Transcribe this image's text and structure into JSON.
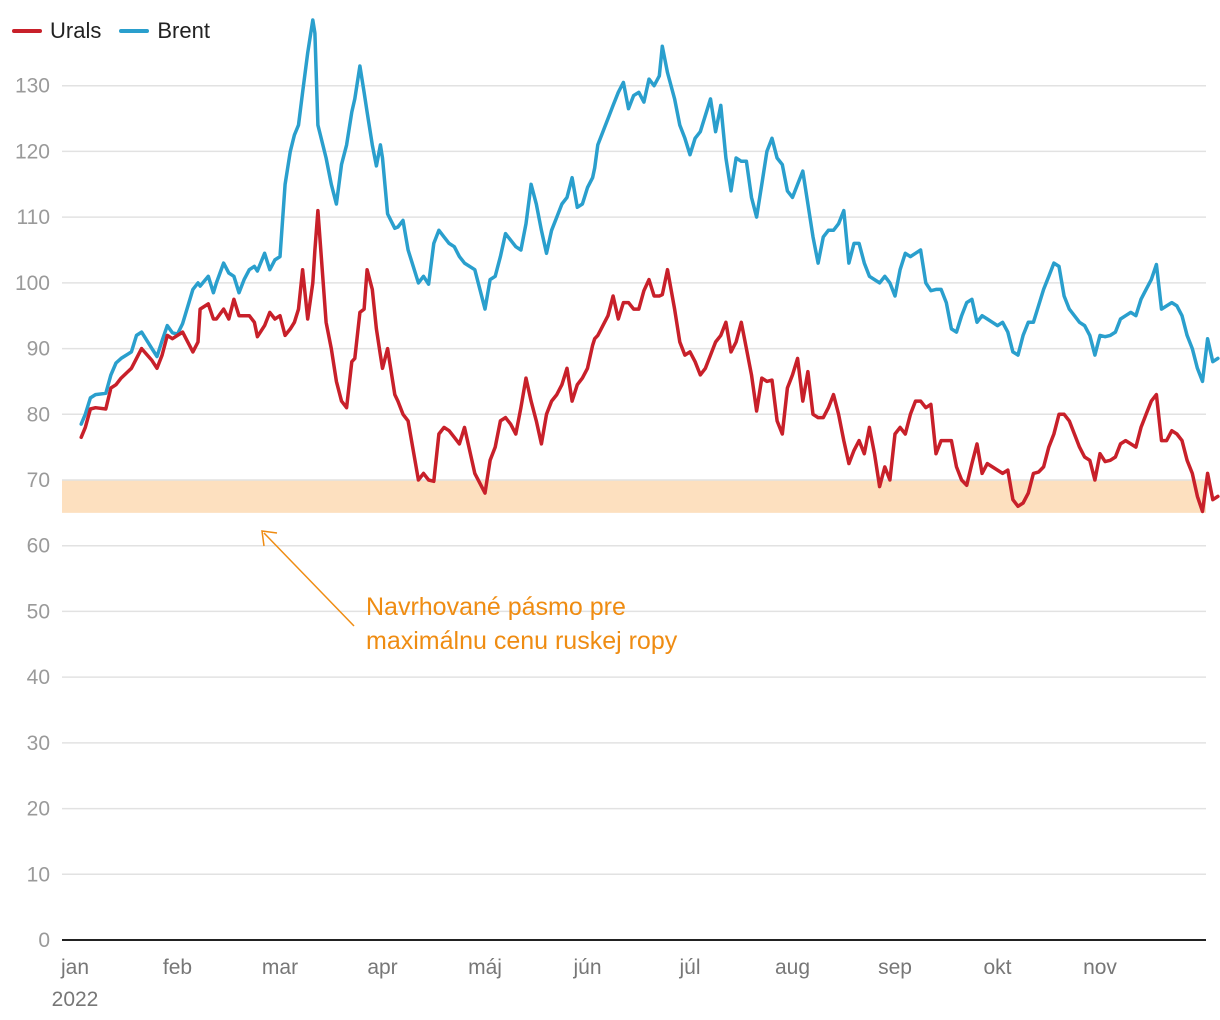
{
  "legend": {
    "urals_label": "Urals",
    "brent_label": "Brent"
  },
  "annotation": "Navrhované pásmo pre maximálnu cenu ruskej ropy",
  "colors": {
    "urals": "#c8202a",
    "brent": "#2a9fcd",
    "band": "#fde0bf",
    "annotation": "#ef8c12",
    "grid": "#e2e2e2",
    "axis": "#222222"
  },
  "chart_data": {
    "type": "line",
    "year_label": "2022",
    "x_ticks": [
      "jan",
      "feb",
      "mar",
      "apr",
      "máj",
      "jún",
      "júl",
      "aug",
      "sep",
      "okt",
      "nov"
    ],
    "xlim": [
      0,
      11.3
    ],
    "ylim": [
      0,
      140
    ],
    "y_ticks": [
      0,
      10,
      20,
      30,
      40,
      50,
      60,
      70,
      80,
      90,
      100,
      110,
      120,
      130
    ],
    "band": {
      "from": 65,
      "to": 70
    },
    "series": [
      {
        "name": "Brent",
        "x": [
          0.06,
          0.1,
          0.15,
          0.2,
          0.3,
          0.35,
          0.4,
          0.45,
          0.55,
          0.6,
          0.65,
          0.75,
          0.8,
          0.85,
          0.9,
          0.95,
          1.0,
          1.05,
          1.15,
          1.2,
          1.22,
          1.3,
          1.35,
          1.38,
          1.45,
          1.5,
          1.55,
          1.6,
          1.65,
          1.7,
          1.75,
          1.78,
          1.85,
          1.9,
          1.95,
          2.0,
          2.05,
          2.1,
          2.14,
          2.18,
          2.22,
          2.27,
          2.32,
          2.34,
          2.37,
          2.45,
          2.5,
          2.55,
          2.6,
          2.65,
          2.7,
          2.73,
          2.78,
          2.82,
          2.85,
          2.9,
          2.94,
          2.98,
          3.0,
          3.05,
          3.12,
          3.15,
          3.2,
          3.25,
          3.35,
          3.4,
          3.45,
          3.5,
          3.55,
          3.6,
          3.65,
          3.7,
          3.75,
          3.8,
          3.9,
          4.0,
          4.05,
          4.1,
          4.15,
          4.2,
          4.25,
          4.3,
          4.35,
          4.4,
          4.45,
          4.5,
          4.55,
          4.6,
          4.65,
          4.7,
          4.75,
          4.8,
          4.85,
          4.9,
          4.95,
          5.0,
          5.05,
          5.07,
          5.1,
          5.15,
          5.2,
          5.25,
          5.3,
          5.35,
          5.4,
          5.45,
          5.5,
          5.55,
          5.6,
          5.65,
          5.7,
          5.73,
          5.78,
          5.85,
          5.9,
          5.95,
          6.0,
          6.05,
          6.1,
          6.15,
          6.2,
          6.25,
          6.3,
          6.35,
          6.4,
          6.45,
          6.5,
          6.55,
          6.6,
          6.65,
          6.7,
          6.75,
          6.8,
          6.85,
          6.9,
          6.95,
          7.0,
          7.05,
          7.1,
          7.15,
          7.2,
          7.25,
          7.3,
          7.35,
          7.4,
          7.45,
          7.5,
          7.55,
          7.6,
          7.65,
          7.7,
          7.75,
          7.8,
          7.85,
          7.9,
          7.95,
          8.0,
          8.05,
          8.1,
          8.15,
          8.2,
          8.25,
          8.3,
          8.35,
          8.4,
          8.45,
          8.5,
          8.55,
          8.6,
          8.65,
          8.7,
          8.75,
          8.8,
          8.85,
          8.9,
          8.95,
          9.0,
          9.05,
          9.1,
          9.15,
          9.2,
          9.25,
          9.3,
          9.35,
          9.4,
          9.45,
          9.5,
          9.55,
          9.6,
          9.65,
          9.7,
          9.75,
          9.8,
          9.85,
          9.9,
          9.95,
          10.0,
          10.05,
          10.1,
          10.15,
          10.2,
          10.25,
          10.3,
          10.35,
          10.4,
          10.45,
          10.5,
          10.55,
          10.6,
          10.65,
          10.7,
          10.75,
          10.8,
          10.85,
          10.9,
          10.95,
          11.0,
          11.05,
          11.1,
          11.15
        ],
        "values": [
          78.5,
          80,
          82.5,
          83,
          83.2,
          86,
          87.8,
          88.5,
          89.5,
          92,
          92.5,
          90,
          88.8,
          91.2,
          93.5,
          92.4,
          92.2,
          93.8,
          99,
          100,
          99.5,
          101,
          98.5,
          100,
          103,
          101.5,
          101,
          98.5,
          100.5,
          102,
          102.5,
          101.8,
          104.5,
          102,
          103.5,
          104,
          115,
          120,
          122.5,
          124,
          129,
          135,
          140,
          138,
          124,
          119,
          115,
          112,
          118,
          121,
          126,
          128,
          133,
          129,
          126,
          121,
          117.8,
          121,
          119,
          110.5,
          108.3,
          108.5,
          109.5,
          105,
          100,
          101,
          99.8,
          106,
          108,
          107,
          106,
          105.5,
          104,
          103,
          102,
          96,
          100.5,
          101,
          104,
          107.5,
          106.5,
          105.5,
          105,
          109,
          115,
          112,
          108,
          104.5,
          108,
          110,
          112,
          113,
          116,
          111.5,
          112,
          114.5,
          116,
          117.5,
          121,
          123,
          125,
          127,
          129,
          130.5,
          126.5,
          128.5,
          129,
          127.5,
          131,
          130,
          131.5,
          136,
          132,
          128,
          124,
          122,
          119.5,
          122,
          123,
          125.5,
          128,
          123,
          127,
          119,
          114,
          119,
          118.5,
          118.5,
          113,
          110,
          115,
          120,
          122,
          119,
          118,
          114,
          113,
          115,
          117,
          112,
          107,
          103,
          107,
          108,
          108,
          109,
          111,
          103,
          106,
          106,
          103,
          101,
          100.5,
          100,
          101,
          100,
          98,
          102,
          104.5,
          104,
          104.5,
          105,
          100,
          98.8,
          99,
          99,
          97,
          93,
          92.5,
          95,
          97,
          97.5,
          94,
          95,
          94.5,
          94,
          93.5,
          94,
          92.5,
          89.5,
          89,
          92,
          94,
          94,
          96.5,
          99,
          101,
          103,
          102.5,
          98,
          96,
          95,
          94,
          93.5,
          92,
          89,
          92,
          91.8,
          92,
          92.5,
          94.5,
          95,
          95.5,
          95,
          97.5,
          99,
          100.5,
          102.8,
          96,
          96.5,
          97,
          96.5,
          95,
          92,
          90,
          87,
          85,
          91.5,
          88,
          88.5
        ],
        "color": "#2a9fcd"
      },
      {
        "name": "Urals",
        "x": [
          0.06,
          0.1,
          0.15,
          0.2,
          0.3,
          0.35,
          0.4,
          0.45,
          0.55,
          0.6,
          0.65,
          0.75,
          0.8,
          0.85,
          0.9,
          0.95,
          1.0,
          1.05,
          1.15,
          1.2,
          1.22,
          1.3,
          1.35,
          1.38,
          1.45,
          1.5,
          1.55,
          1.6,
          1.65,
          1.7,
          1.75,
          1.78,
          1.85,
          1.9,
          1.95,
          2.0,
          2.05,
          2.1,
          2.14,
          2.18,
          2.22,
          2.27,
          2.32,
          2.34,
          2.37,
          2.45,
          2.5,
          2.55,
          2.6,
          2.65,
          2.7,
          2.73,
          2.78,
          2.82,
          2.85,
          2.9,
          2.94,
          2.98,
          3.0,
          3.05,
          3.12,
          3.15,
          3.2,
          3.25,
          3.35,
          3.4,
          3.45,
          3.5,
          3.55,
          3.6,
          3.65,
          3.7,
          3.75,
          3.8,
          3.9,
          4.0,
          4.05,
          4.1,
          4.15,
          4.2,
          4.25,
          4.3,
          4.35,
          4.4,
          4.45,
          4.5,
          4.55,
          4.6,
          4.65,
          4.7,
          4.75,
          4.8,
          4.85,
          4.9,
          4.95,
          5.0,
          5.05,
          5.07,
          5.1,
          5.15,
          5.2,
          5.25,
          5.3,
          5.35,
          5.4,
          5.45,
          5.5,
          5.55,
          5.6,
          5.65,
          5.7,
          5.73,
          5.78,
          5.85,
          5.9,
          5.95,
          6.0,
          6.05,
          6.1,
          6.15,
          6.2,
          6.25,
          6.3,
          6.35,
          6.4,
          6.45,
          6.5,
          6.55,
          6.6,
          6.65,
          6.7,
          6.75,
          6.8,
          6.85,
          6.9,
          6.95,
          7.0,
          7.05,
          7.1,
          7.15,
          7.2,
          7.25,
          7.3,
          7.35,
          7.4,
          7.45,
          7.5,
          7.55,
          7.6,
          7.65,
          7.7,
          7.75,
          7.8,
          7.85,
          7.9,
          7.95,
          8.0,
          8.05,
          8.1,
          8.15,
          8.2,
          8.25,
          8.3,
          8.35,
          8.4,
          8.45,
          8.5,
          8.55,
          8.6,
          8.65,
          8.7,
          8.75,
          8.8,
          8.85,
          8.9,
          8.95,
          9.0,
          9.05,
          9.1,
          9.15,
          9.2,
          9.25,
          9.3,
          9.35,
          9.4,
          9.45,
          9.5,
          9.55,
          9.6,
          9.65,
          9.7,
          9.75,
          9.8,
          9.85,
          9.9,
          9.95,
          10.0,
          10.05,
          10.1,
          10.15,
          10.2,
          10.25,
          10.3,
          10.35,
          10.4,
          10.45,
          10.5,
          10.55,
          10.6,
          10.65,
          10.7,
          10.75,
          10.8,
          10.85,
          10.9,
          10.95,
          11.0,
          11.05,
          11.1,
          11.15
        ],
        "values": [
          76.5,
          78,
          80.8,
          81,
          80.8,
          84,
          84.5,
          85.5,
          87,
          88.5,
          90,
          88.2,
          87,
          89,
          92,
          91.5,
          92,
          92.5,
          89.5,
          91,
          96,
          96.8,
          94.5,
          94.5,
          96,
          94.5,
          97.5,
          95,
          95,
          95,
          94,
          91.8,
          93.5,
          95.5,
          94.5,
          95,
          92,
          93,
          94,
          96,
          102,
          94.5,
          100,
          105,
          111,
          94,
          90,
          85,
          82,
          81,
          88,
          88.5,
          95.5,
          96,
          102,
          99,
          93,
          89,
          87,
          90,
          83,
          82,
          80,
          79,
          70,
          71,
          70,
          69.8,
          77,
          78,
          77.5,
          76.5,
          75.5,
          78,
          71,
          68,
          73,
          75,
          79,
          79.5,
          78.5,
          77,
          81,
          85.5,
          82,
          79,
          75.5,
          80,
          82,
          83,
          84.5,
          87,
          82,
          84.5,
          85.5,
          87,
          90.5,
          91.5,
          92,
          93.5,
          95,
          98,
          94.5,
          97,
          97,
          96,
          96,
          98.8,
          100.5,
          98,
          98,
          98.2,
          102,
          96,
          91,
          89,
          89.5,
          88,
          86,
          87,
          89,
          91,
          92,
          94,
          89.5,
          91,
          94,
          90,
          86,
          80.5,
          85.5,
          85,
          85.2,
          79,
          77,
          84,
          86,
          88.5,
          82,
          86.5,
          80,
          79.5,
          79.5,
          81,
          83,
          80,
          76,
          72.5,
          74.5,
          76,
          74,
          78,
          74,
          69,
          72,
          70,
          77,
          78,
          77,
          80,
          82,
          82,
          81,
          81.5,
          74,
          76,
          76,
          76,
          72,
          70,
          69.2,
          72.5,
          75.5,
          71,
          72.5,
          72,
          71.5,
          71,
          71.5,
          67,
          66,
          66.5,
          68,
          71,
          71.2,
          72,
          75,
          77,
          80,
          80,
          79,
          77,
          75,
          73.5,
          73,
          70,
          74,
          72.8,
          73,
          73.5,
          75.5,
          76,
          75.5,
          75,
          78,
          80,
          82,
          83,
          76,
          76,
          77.5,
          77,
          76,
          73,
          71,
          67.5,
          65.2,
          71,
          67,
          67.5
        ]
      }
    ]
  }
}
